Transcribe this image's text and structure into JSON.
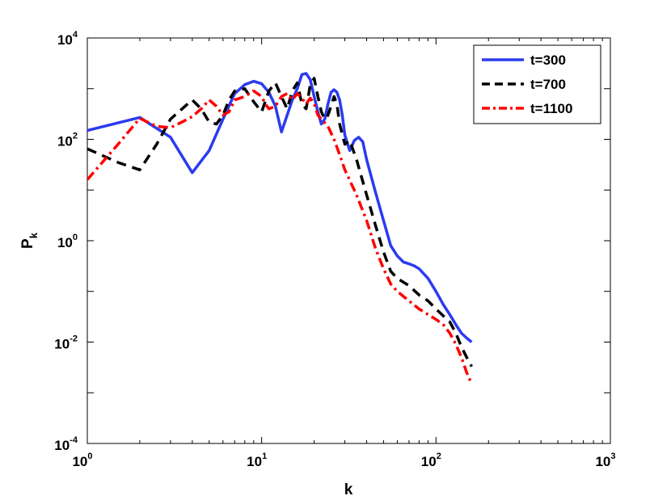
{
  "chart_data": {
    "type": "line",
    "title": "",
    "xlabel": "k",
    "ylabel_base": "P",
    "ylabel_sub": "k",
    "xscale": "log",
    "yscale": "log",
    "xlim": [
      1,
      1000
    ],
    "ylim": [
      0.0001,
      10000
    ],
    "grid": false,
    "legend_position": "top-right",
    "x_ticks": [
      {
        "value": 1,
        "base": "10",
        "exp": "0"
      },
      {
        "value": 10,
        "base": "10",
        "exp": "1"
      },
      {
        "value": 100,
        "base": "10",
        "exp": "2"
      },
      {
        "value": 1000,
        "base": "10",
        "exp": "3"
      }
    ],
    "y_ticks": [
      {
        "value": 0.0001,
        "base": "10",
        "exp": "-4"
      },
      {
        "value": 0.01,
        "base": "10",
        "exp": "-2"
      },
      {
        "value": 1,
        "base": "10",
        "exp": "0"
      },
      {
        "value": 100,
        "base": "10",
        "exp": "2"
      },
      {
        "value": 10000,
        "base": "10",
        "exp": "4"
      }
    ],
    "series": [
      {
        "name": "t=300",
        "color": "#2b3bf0",
        "dash": "solid",
        "points": [
          [
            1,
            150
          ],
          [
            2,
            270
          ],
          [
            3,
            110
          ],
          [
            4,
            22
          ],
          [
            5,
            60
          ],
          [
            6,
            250
          ],
          [
            7,
            800
          ],
          [
            8,
            1200
          ],
          [
            9,
            1400
          ],
          [
            10,
            1250
          ],
          [
            11,
            850
          ],
          [
            12,
            450
          ],
          [
            13,
            140
          ],
          [
            14,
            300
          ],
          [
            15,
            600
          ],
          [
            16,
            1000
          ],
          [
            17,
            1900
          ],
          [
            18,
            2000
          ],
          [
            19,
            1500
          ],
          [
            20,
            700
          ],
          [
            21,
            350
          ],
          [
            22,
            200
          ],
          [
            23,
            250
          ],
          [
            24,
            500
          ],
          [
            25,
            850
          ],
          [
            26,
            950
          ],
          [
            27,
            850
          ],
          [
            28,
            600
          ],
          [
            29,
            300
          ],
          [
            30,
            120
          ],
          [
            32,
            60
          ],
          [
            34,
            95
          ],
          [
            36,
            110
          ],
          [
            38,
            90
          ],
          [
            40,
            40
          ],
          [
            45,
            9
          ],
          [
            50,
            2.5
          ],
          [
            55,
            0.8
          ],
          [
            60,
            0.5
          ],
          [
            65,
            0.38
          ],
          [
            70,
            0.35
          ],
          [
            75,
            0.32
          ],
          [
            80,
            0.28
          ],
          [
            90,
            0.18
          ],
          [
            100,
            0.1
          ],
          [
            110,
            0.055
          ],
          [
            120,
            0.035
          ],
          [
            130,
            0.022
          ],
          [
            140,
            0.015
          ],
          [
            150,
            0.012
          ],
          [
            160,
            0.01
          ]
        ]
      },
      {
        "name": "t=700",
        "color": "#000000",
        "dash": "dashed",
        "points": [
          [
            1,
            65
          ],
          [
            1.5,
            35
          ],
          [
            2,
            25
          ],
          [
            2.5,
            80
          ],
          [
            3,
            250
          ],
          [
            3.5,
            400
          ],
          [
            4,
            600
          ],
          [
            4.5,
            400
          ],
          [
            5,
            220
          ],
          [
            5.5,
            200
          ],
          [
            6,
            300
          ],
          [
            6.5,
            600
          ],
          [
            7,
            900
          ],
          [
            8,
            1000
          ],
          [
            9,
            550
          ],
          [
            10,
            350
          ],
          [
            11,
            900
          ],
          [
            12,
            1300
          ],
          [
            13,
            700
          ],
          [
            14,
            400
          ],
          [
            15,
            900
          ],
          [
            16,
            1300
          ],
          [
            17,
            500
          ],
          [
            18,
            400
          ],
          [
            19,
            1200
          ],
          [
            20,
            1600
          ],
          [
            21,
            700
          ],
          [
            22,
            350
          ],
          [
            23,
            250
          ],
          [
            24,
            300
          ],
          [
            25,
            450
          ],
          [
            26,
            700
          ],
          [
            27,
            500
          ],
          [
            28,
            200
          ],
          [
            30,
            80
          ],
          [
            32,
            95
          ],
          [
            35,
            40
          ],
          [
            40,
            8
          ],
          [
            45,
            2
          ],
          [
            50,
            0.6
          ],
          [
            55,
            0.25
          ],
          [
            60,
            0.18
          ],
          [
            70,
            0.13
          ],
          [
            80,
            0.085
          ],
          [
            90,
            0.065
          ],
          [
            100,
            0.045
          ],
          [
            110,
            0.033
          ],
          [
            120,
            0.025
          ],
          [
            130,
            0.015
          ],
          [
            140,
            0.008
          ],
          [
            150,
            0.005
          ],
          [
            160,
            0.0033
          ]
        ]
      },
      {
        "name": "t=1100",
        "color": "#ff0000",
        "dash": "dashdot",
        "points": [
          [
            1,
            16
          ],
          [
            1.5,
            80
          ],
          [
            2,
            260
          ],
          [
            2.5,
            180
          ],
          [
            3,
            170
          ],
          [
            3.5,
            220
          ],
          [
            4,
            280
          ],
          [
            4.5,
            400
          ],
          [
            5,
            600
          ],
          [
            5.5,
            450
          ],
          [
            6,
            300
          ],
          [
            6.5,
            350
          ],
          [
            7,
            600
          ],
          [
            8,
            700
          ],
          [
            9,
            900
          ],
          [
            10,
            700
          ],
          [
            10.5,
            500
          ],
          [
            11,
            400
          ],
          [
            12,
            450
          ],
          [
            13,
            700
          ],
          [
            14,
            800
          ],
          [
            15,
            600
          ],
          [
            16,
            800
          ],
          [
            17,
            650
          ],
          [
            18,
            500
          ],
          [
            19,
            650
          ],
          [
            20,
            500
          ],
          [
            21,
            300
          ],
          [
            22,
            250
          ],
          [
            24,
            180
          ],
          [
            26,
            100
          ],
          [
            28,
            50
          ],
          [
            30,
            25
          ],
          [
            35,
            8
          ],
          [
            40,
            2.5
          ],
          [
            45,
            0.7
          ],
          [
            50,
            0.28
          ],
          [
            55,
            0.14
          ],
          [
            60,
            0.1
          ],
          [
            70,
            0.065
          ],
          [
            80,
            0.045
          ],
          [
            90,
            0.035
          ],
          [
            100,
            0.028
          ],
          [
            110,
            0.022
          ],
          [
            120,
            0.015
          ],
          [
            130,
            0.009
          ],
          [
            140,
            0.005
          ],
          [
            150,
            0.0025
          ],
          [
            160,
            0.0015
          ]
        ]
      }
    ]
  }
}
